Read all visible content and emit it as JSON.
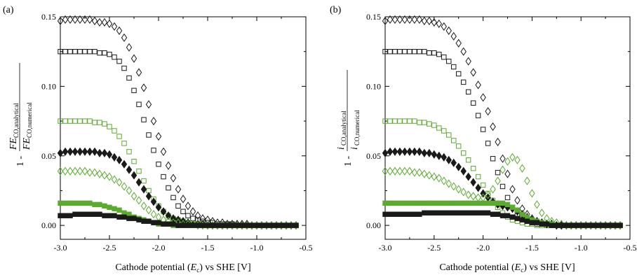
{
  "colors": {
    "black": "#1a1a1a",
    "green": "#5aab2e"
  },
  "marker_legend": {
    "open-diamond-black": "open diamond, black",
    "open-square-black": "open square, black",
    "open-square-green": "open square, green",
    "filled-diamond-black": "filled diamond, black",
    "open-diamond-green": "open diamond, green",
    "filled-square-green": "filled square, green",
    "filled-square-black": "filled square, black"
  },
  "chart_data": [
    {
      "type": "scatter",
      "panel_label": "(a)",
      "xlabel": "Cathode potential (E_c) vs SHE [V]",
      "xlabel_parts": {
        "pre": "Cathode potential (",
        "var": "E",
        "sub": "c",
        "post": ") vs SHE [V]"
      },
      "ylabel": "1 - FE_CO,analytical / FE_CO,numerical",
      "ylabel_parts": {
        "prefix": "1 -",
        "num_var": "FE",
        "num_sub": "CO,analytical",
        "den_var": "FE",
        "den_sub": "CO,numerical"
      },
      "xlim": [
        -3.0,
        -0.5
      ],
      "ylim": [
        -0.01,
        0.15
      ],
      "xticks": [
        -3.0,
        -2.5,
        -2.0,
        -1.5,
        -1.0,
        -0.5
      ],
      "xtick_labels": [
        "-3.0",
        "-2.5",
        "-2.0",
        "-1.5",
        "-1.0",
        "-0.5"
      ],
      "yticks": [
        0.0,
        0.05,
        0.1,
        0.15
      ],
      "ytick_labels": [
        "0.00",
        "0.05",
        "0.10",
        "0.15"
      ],
      "x": [
        -3.0,
        -2.95,
        -2.9,
        -2.85,
        -2.8,
        -2.75,
        -2.7,
        -2.65,
        -2.6,
        -2.55,
        -2.5,
        -2.45,
        -2.4,
        -2.35,
        -2.3,
        -2.25,
        -2.2,
        -2.15,
        -2.1,
        -2.05,
        -2.0,
        -1.95,
        -1.9,
        -1.85,
        -1.8,
        -1.75,
        -1.7,
        -1.65,
        -1.6,
        -1.55,
        -1.5,
        -1.45,
        -1.4,
        -1.35,
        -1.3,
        -1.25,
        -1.2,
        -1.15,
        -1.1,
        -1.05,
        -1.0,
        -0.95,
        -0.9,
        -0.85,
        -0.8,
        -0.75,
        -0.7,
        -0.65,
        -0.6
      ],
      "series": [
        {
          "marker": "open-diamond-black",
          "x_range": [
            -3.0,
            -0.6
          ],
          "values": [
            0.147,
            0.148,
            0.148,
            0.148,
            0.148,
            0.148,
            0.148,
            0.147,
            0.146,
            0.146,
            0.145,
            0.143,
            0.14,
            0.135,
            0.128,
            0.12,
            0.11,
            0.099,
            0.087,
            0.075,
            0.064,
            0.053,
            0.043,
            0.034,
            0.026,
            0.019,
            0.014,
            0.01,
            0.007,
            0.005,
            0.004,
            0.003,
            0.002,
            0.002,
            0.001,
            0.001,
            0.001,
            0.001,
            0.001,
            0.0,
            0.0,
            0.0,
            0.0,
            0.0,
            0.0,
            0.0,
            0.0,
            0.0,
            0.0
          ]
        },
        {
          "marker": "open-square-black",
          "x_range": [
            -3.0,
            -0.6
          ],
          "values": [
            0.125,
            0.125,
            0.125,
            0.125,
            0.125,
            0.125,
            0.125,
            0.125,
            0.124,
            0.124,
            0.123,
            0.121,
            0.118,
            0.113,
            0.106,
            0.097,
            0.087,
            0.076,
            0.065,
            0.054,
            0.044,
            0.035,
            0.027,
            0.02,
            0.014,
            0.01,
            0.007,
            0.005,
            0.004,
            0.003,
            0.002,
            0.002,
            0.001,
            0.001,
            0.001,
            0.001,
            0.0,
            0.0,
            0.0,
            0.0,
            0.0,
            0.0,
            0.0,
            0.0,
            0.0,
            0.0,
            0.0,
            0.0,
            0.0
          ]
        },
        {
          "marker": "open-square-green",
          "x_range": [
            -3.0,
            -0.6
          ],
          "values": [
            0.075,
            0.075,
            0.075,
            0.075,
            0.075,
            0.075,
            0.075,
            0.074,
            0.074,
            0.073,
            0.071,
            0.068,
            0.064,
            0.059,
            0.053,
            0.046,
            0.039,
            0.032,
            0.025,
            0.019,
            0.014,
            0.01,
            0.007,
            0.005,
            0.004,
            0.003,
            0.002,
            0.001,
            0.001,
            0.001,
            0.0,
            0.0,
            0.0,
            0.0,
            0.0,
            0.0,
            0.0,
            0.0,
            0.0,
            0.0,
            0.0,
            0.0,
            0.0,
            0.0,
            0.0,
            0.0,
            0.0,
            0.0,
            0.0
          ]
        },
        {
          "marker": "filled-diamond-black",
          "x_range": [
            -3.0,
            -0.6
          ],
          "values": [
            0.052,
            0.053,
            0.053,
            0.053,
            0.053,
            0.053,
            0.053,
            0.053,
            0.052,
            0.052,
            0.051,
            0.049,
            0.047,
            0.044,
            0.04,
            0.036,
            0.031,
            0.026,
            0.021,
            0.017,
            0.013,
            0.01,
            0.007,
            0.005,
            0.004,
            0.003,
            0.002,
            0.001,
            0.001,
            0.001,
            0.0,
            0.0,
            0.0,
            0.0,
            0.0,
            0.0,
            0.0,
            0.0,
            0.0,
            0.0,
            0.0,
            0.0,
            0.0,
            0.0,
            0.0,
            0.0,
            0.0,
            0.0,
            0.0
          ]
        },
        {
          "marker": "open-diamond-green",
          "x_range": [
            -3.0,
            -0.6
          ],
          "values": [
            0.039,
            0.039,
            0.039,
            0.039,
            0.039,
            0.039,
            0.038,
            0.038,
            0.037,
            0.036,
            0.035,
            0.033,
            0.031,
            0.028,
            0.025,
            0.021,
            0.018,
            0.014,
            0.011,
            0.008,
            0.006,
            0.004,
            0.003,
            0.002,
            0.002,
            0.001,
            0.001,
            0.001,
            0.0,
            0.0,
            0.0,
            0.0,
            0.0,
            0.0,
            0.0,
            0.0,
            0.0,
            0.0,
            0.0,
            0.0,
            0.0,
            0.0,
            0.0,
            0.0,
            0.0,
            0.0,
            0.0,
            0.0,
            0.0
          ]
        },
        {
          "marker": "filled-square-green",
          "x_range": [
            -3.0,
            -0.6
          ],
          "values": [
            0.016,
            0.016,
            0.016,
            0.016,
            0.016,
            0.016,
            0.016,
            0.015,
            0.015,
            0.014,
            0.013,
            0.012,
            0.011,
            0.009,
            0.008,
            0.006,
            0.005,
            0.004,
            0.003,
            0.002,
            0.001,
            0.001,
            0.001,
            0.0,
            0.0,
            0.0,
            0.0,
            0.0,
            0.0,
            0.0,
            0.0,
            0.0,
            0.0,
            0.0,
            0.0,
            0.0,
            0.0,
            0.0,
            0.0,
            0.0,
            0.0,
            0.0,
            0.0,
            0.0,
            0.0,
            0.0,
            0.0,
            0.0,
            0.0
          ]
        },
        {
          "marker": "filled-square-black",
          "x_range": [
            -3.0,
            -0.6
          ],
          "values": [
            0.007,
            0.007,
            0.007,
            0.008,
            0.008,
            0.008,
            0.008,
            0.008,
            0.008,
            0.007,
            0.007,
            0.007,
            0.006,
            0.006,
            0.005,
            0.005,
            0.004,
            0.003,
            0.003,
            0.002,
            0.002,
            0.001,
            0.001,
            0.001,
            0.0,
            0.0,
            0.0,
            0.0,
            0.0,
            0.0,
            0.0,
            0.0,
            0.0,
            0.0,
            0.0,
            0.0,
            0.0,
            0.0,
            0.0,
            0.0,
            0.0,
            0.0,
            0.0,
            0.0,
            0.0,
            0.0,
            0.0,
            0.0,
            0.0
          ]
        }
      ]
    },
    {
      "type": "scatter",
      "panel_label": "(b)",
      "xlabel": "Cathode potential (E_c) vs SHE [V]",
      "xlabel_parts": {
        "pre": "Cathode potential (",
        "var": "E",
        "sub": "c",
        "post": ") vs SHE [V]"
      },
      "ylabel": "1 - i_CO,analytical / i_CO,numerical",
      "ylabel_parts": {
        "prefix": "1 -",
        "num_var": "i",
        "num_sub": "CO,analytical",
        "den_var": "i",
        "den_sub": "CO,numerical"
      },
      "xlim": [
        -3.0,
        -0.5
      ],
      "ylim": [
        -0.01,
        0.15
      ],
      "xticks": [
        -3.0,
        -2.5,
        -2.0,
        -1.5,
        -1.0,
        -0.5
      ],
      "xtick_labels": [
        "-3.0",
        "-2.5",
        "-2.0",
        "-1.5",
        "-1.0",
        "-0.5"
      ],
      "yticks": [
        0.0,
        0.05,
        0.1,
        0.15
      ],
      "ytick_labels": [
        "0.00",
        "0.05",
        "0.10",
        "0.15"
      ],
      "x": [
        -3.0,
        -2.95,
        -2.9,
        -2.85,
        -2.8,
        -2.75,
        -2.7,
        -2.65,
        -2.6,
        -2.55,
        -2.5,
        -2.45,
        -2.4,
        -2.35,
        -2.3,
        -2.25,
        -2.2,
        -2.15,
        -2.1,
        -2.05,
        -2.0,
        -1.95,
        -1.9,
        -1.85,
        -1.8,
        -1.75,
        -1.7,
        -1.65,
        -1.6,
        -1.55,
        -1.5,
        -1.45,
        -1.4,
        -1.35,
        -1.3,
        -1.25,
        -1.2,
        -1.15,
        -1.1,
        -1.05,
        -1.0,
        -0.95,
        -0.9,
        -0.85,
        -0.8,
        -0.75,
        -0.7,
        -0.65,
        -0.6
      ],
      "series": [
        {
          "marker": "open-diamond-black",
          "x_range": [
            -3.0,
            -0.6
          ],
          "values": [
            0.147,
            0.148,
            0.148,
            0.148,
            0.148,
            0.148,
            0.148,
            0.148,
            0.147,
            0.147,
            0.146,
            0.145,
            0.143,
            0.14,
            0.136,
            0.131,
            0.125,
            0.118,
            0.11,
            0.101,
            0.092,
            0.082,
            0.071,
            0.06,
            0.048,
            0.037,
            0.026,
            0.018,
            0.012,
            0.008,
            0.005,
            0.003,
            0.002,
            0.001,
            0.001,
            0.0,
            0.0,
            0.0,
            0.0,
            0.0,
            0.0,
            0.0,
            0.0,
            0.0,
            0.0,
            0.0,
            0.0,
            0.0,
            0.0
          ]
        },
        {
          "marker": "open-square-black",
          "x_range": [
            -3.0,
            -0.6
          ],
          "values": [
            0.125,
            0.125,
            0.125,
            0.125,
            0.125,
            0.125,
            0.125,
            0.125,
            0.125,
            0.124,
            0.124,
            0.123,
            0.121,
            0.118,
            0.114,
            0.109,
            0.103,
            0.096,
            0.088,
            0.079,
            0.069,
            0.059,
            0.048,
            0.038,
            0.028,
            0.02,
            0.013,
            0.008,
            0.005,
            0.003,
            0.002,
            0.001,
            0.001,
            0.0,
            0.0,
            0.0,
            0.0,
            0.0,
            0.0,
            0.0,
            0.0,
            0.0,
            0.0,
            0.0,
            0.0,
            0.0,
            0.0,
            0.0,
            0.0
          ]
        },
        {
          "marker": "open-square-green",
          "x_range": [
            -3.0,
            -0.6
          ],
          "values": [
            0.075,
            0.075,
            0.075,
            0.075,
            0.075,
            0.075,
            0.075,
            0.074,
            0.074,
            0.073,
            0.072,
            0.07,
            0.068,
            0.065,
            0.061,
            0.057,
            0.052,
            0.047,
            0.041,
            0.035,
            0.029,
            0.023,
            0.018,
            0.013,
            0.009,
            0.006,
            0.004,
            0.003,
            0.002,
            0.001,
            0.001,
            0.0,
            0.0,
            0.0,
            0.0,
            0.0,
            0.0,
            0.0,
            0.0,
            0.0,
            0.0,
            0.0,
            0.0,
            0.0,
            0.0,
            0.0,
            0.0,
            0.0,
            0.0
          ]
        },
        {
          "marker": "filled-diamond-black",
          "x_range": [
            -3.0,
            -0.6
          ],
          "values": [
            0.052,
            0.053,
            0.053,
            0.053,
            0.053,
            0.053,
            0.053,
            0.053,
            0.052,
            0.052,
            0.051,
            0.05,
            0.049,
            0.047,
            0.045,
            0.042,
            0.039,
            0.035,
            0.031,
            0.027,
            0.023,
            0.02,
            0.017,
            0.015,
            0.014,
            0.013,
            0.012,
            0.01,
            0.008,
            0.006,
            0.004,
            0.003,
            0.002,
            0.001,
            0.001,
            0.0,
            0.0,
            0.0,
            0.0,
            0.0,
            0.0,
            0.0,
            0.0,
            0.0,
            0.0,
            0.0,
            0.0,
            0.0,
            0.0
          ]
        },
        {
          "marker": "open-diamond-green",
          "x_range": [
            -3.0,
            -0.6
          ],
          "values": [
            0.039,
            0.039,
            0.039,
            0.039,
            0.039,
            0.039,
            0.038,
            0.038,
            0.037,
            0.036,
            0.035,
            0.034,
            0.032,
            0.03,
            0.028,
            0.026,
            0.024,
            0.022,
            0.021,
            0.02,
            0.02,
            0.022,
            0.026,
            0.032,
            0.04,
            0.046,
            0.049,
            0.047,
            0.041,
            0.032,
            0.023,
            0.015,
            0.009,
            0.005,
            0.003,
            0.002,
            0.001,
            0.0,
            0.0,
            0.0,
            0.0,
            0.0,
            0.0,
            0.0,
            0.0,
            0.0,
            0.0,
            0.0,
            0.0
          ]
        },
        {
          "marker": "filled-square-green",
          "x_range": [
            -3.0,
            -0.6
          ],
          "values": [
            0.016,
            0.016,
            0.016,
            0.016,
            0.016,
            0.016,
            0.016,
            0.016,
            0.016,
            0.016,
            0.016,
            0.016,
            0.016,
            0.016,
            0.016,
            0.016,
            0.016,
            0.016,
            0.016,
            0.016,
            0.016,
            0.016,
            0.016,
            0.016,
            0.016,
            0.015,
            0.013,
            0.011,
            0.008,
            0.006,
            0.004,
            0.003,
            0.002,
            0.001,
            0.001,
            0.0,
            0.0,
            0.0,
            0.0,
            0.0,
            0.0,
            0.0,
            0.0,
            0.0,
            0.0,
            0.0,
            0.0,
            0.0,
            0.0
          ]
        },
        {
          "marker": "filled-square-black",
          "x_range": [
            -3.0,
            -0.6
          ],
          "values": [
            0.008,
            0.008,
            0.008,
            0.008,
            0.008,
            0.008,
            0.008,
            0.008,
            0.009,
            0.009,
            0.009,
            0.009,
            0.009,
            0.009,
            0.009,
            0.009,
            0.009,
            0.009,
            0.009,
            0.009,
            0.009,
            0.009,
            0.008,
            0.008,
            0.007,
            0.007,
            0.006,
            0.005,
            0.004,
            0.003,
            0.002,
            0.002,
            0.001,
            0.001,
            0.0,
            0.0,
            0.0,
            0.0,
            0.0,
            0.0,
            0.0,
            0.0,
            0.0,
            0.0,
            0.0,
            0.0,
            0.0,
            0.0,
            0.0
          ]
        }
      ]
    }
  ]
}
